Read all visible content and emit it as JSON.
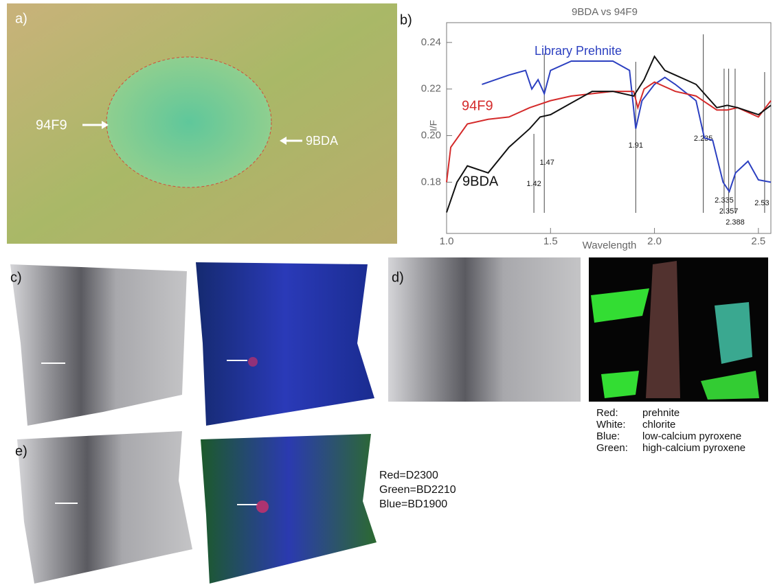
{
  "panel_a": {
    "label": "a)",
    "arrow_left": "94F9",
    "arrow_right": "9BDA"
  },
  "chart_data": {
    "type": "line",
    "panel_label": "b)",
    "title": "9BDA vs 94F9",
    "x_label": "Wavelength",
    "y_label": "I/F",
    "xlim": [
      1.0,
      2.56
    ],
    "xticks": [
      {
        "value": 1.0,
        "label": "1.0"
      },
      1.5,
      {
        "value": 2.0,
        "label": "2.0"
      },
      2.5
    ],
    "ylim": [
      0.158,
      0.2485
    ],
    "yticks": [
      0.18,
      {
        "value": 0.2,
        "label": "0.20"
      },
      0.22,
      0.24
    ],
    "band_lines": [
      1.42,
      1.47,
      1.91,
      2.235,
      2.335,
      2.357,
      2.388,
      2.53
    ],
    "series": [
      {
        "name": "Library Prehnite",
        "color": "#2b3fc0",
        "x": [
          1.17,
          1.3,
          1.38,
          1.41,
          1.44,
          1.47,
          1.5,
          1.6,
          1.8,
          1.88,
          1.91,
          1.94,
          2.0,
          2.05,
          2.1,
          2.2,
          2.24,
          2.28,
          2.33,
          2.36,
          2.39,
          2.45,
          2.5,
          2.56
        ],
        "values": [
          0.222,
          0.226,
          0.228,
          0.22,
          0.224,
          0.218,
          0.228,
          0.232,
          0.232,
          0.228,
          0.203,
          0.215,
          0.222,
          0.225,
          0.222,
          0.215,
          0.199,
          0.198,
          0.18,
          0.176,
          0.184,
          0.189,
          0.181,
          0.18
        ]
      },
      {
        "name": "94F9",
        "color": "#d42a2a",
        "x": [
          1.0,
          1.02,
          1.1,
          1.2,
          1.3,
          1.4,
          1.5,
          1.6,
          1.8,
          1.9,
          1.92,
          1.95,
          2.0,
          2.1,
          2.2,
          2.3,
          2.35,
          2.4,
          2.5,
          2.56
        ],
        "values": [
          0.18,
          0.195,
          0.205,
          0.207,
          0.208,
          0.212,
          0.215,
          0.217,
          0.219,
          0.219,
          0.212,
          0.22,
          0.223,
          0.219,
          0.217,
          0.211,
          0.211,
          0.212,
          0.208,
          0.215
        ]
      },
      {
        "name": "9BDA",
        "color": "#111111",
        "x": [
          1.0,
          1.05,
          1.1,
          1.2,
          1.3,
          1.4,
          1.45,
          1.5,
          1.6,
          1.7,
          1.8,
          1.9,
          1.95,
          2.0,
          2.05,
          2.1,
          2.2,
          2.3,
          2.35,
          2.4,
          2.5,
          2.56
        ],
        "values": [
          0.167,
          0.18,
          0.187,
          0.184,
          0.195,
          0.203,
          0.208,
          0.209,
          0.214,
          0.219,
          0.219,
          0.217,
          0.224,
          0.234,
          0.228,
          0.226,
          0.222,
          0.212,
          0.213,
          0.212,
          0.209,
          0.213
        ]
      }
    ]
  },
  "panel_c": {
    "label": "c)"
  },
  "panel_d": {
    "label": "d)",
    "legend": [
      [
        "Red:",
        "prehnite"
      ],
      [
        "White:",
        "chlorite"
      ],
      [
        "Blue:",
        "low-calcium pyroxene"
      ],
      [
        "Green:",
        "high-calcium pyroxene"
      ]
    ]
  },
  "panel_e": {
    "label": "e)",
    "legend": [
      "Red=D2300",
      "Green=BD2210",
      "Blue=BD1900"
    ]
  }
}
